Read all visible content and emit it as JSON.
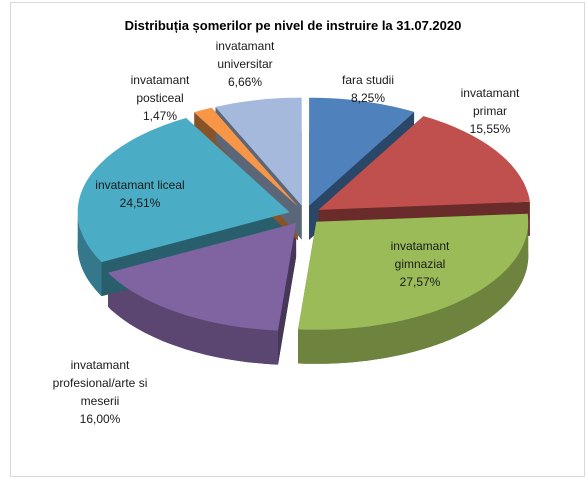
{
  "chart_data": {
    "type": "pie",
    "title": "Distribuția șomerilor pe nivel de  instruire la 31.07.2020",
    "categories": [
      "fara studii",
      "invatamant primar",
      "invatamant gimnazial",
      "invatamant profesional/arte si meserii",
      "invatamant liceal",
      "invatamant posticeal",
      "invatamant universitar"
    ],
    "values": [
      8.25,
      15.55,
      27.57,
      16.0,
      24.51,
      1.47,
      6.66
    ],
    "value_labels": [
      "8,25%",
      "15,55%",
      "27,57%",
      "16,00%",
      "24,51%",
      "1,47%",
      "6,66%"
    ],
    "colors": [
      "#4f81bd",
      "#c0504d",
      "#9bbb59",
      "#8064a2",
      "#4bacc6",
      "#f79646",
      "#a5b9dc"
    ]
  }
}
